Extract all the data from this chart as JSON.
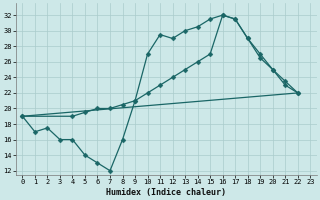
{
  "xlabel": "Humidex (Indice chaleur)",
  "bg_color": "#cde8e8",
  "grid_color": "#aacccc",
  "line_color": "#1a6666",
  "xlim": [
    -0.5,
    23.5
  ],
  "ylim": [
    11.5,
    33.5
  ],
  "xticks": [
    0,
    1,
    2,
    3,
    4,
    5,
    6,
    7,
    8,
    9,
    10,
    11,
    12,
    13,
    14,
    15,
    16,
    17,
    18,
    19,
    20,
    21,
    22,
    23
  ],
  "yticks": [
    12,
    14,
    16,
    18,
    20,
    22,
    24,
    26,
    28,
    30,
    32
  ],
  "line1_x": [
    0,
    1,
    2,
    3,
    4,
    5,
    6,
    7,
    8,
    9,
    10,
    11,
    12,
    13,
    14,
    15,
    16,
    17,
    18,
    19,
    20,
    21,
    22
  ],
  "line1_y": [
    19,
    17,
    17.5,
    16,
    16,
    14,
    13,
    12,
    16,
    21,
    27,
    29.5,
    29,
    30,
    30.5,
    31.5,
    32,
    31.5,
    29,
    26.5,
    25,
    23,
    22
  ],
  "line2_x": [
    0,
    4,
    5,
    6,
    7,
    8,
    9,
    10,
    11,
    12,
    13,
    14,
    15,
    16,
    17,
    18,
    19,
    20,
    21,
    22
  ],
  "line2_y": [
    19,
    19,
    19.5,
    20,
    20,
    20.5,
    21,
    22,
    23,
    24,
    25,
    26,
    27,
    32,
    31.5,
    29,
    27,
    25,
    23.5,
    22
  ],
  "line3_x": [
    0,
    22
  ],
  "line3_y": [
    19,
    22
  ],
  "marker_size": 2.5,
  "line_width": 0.9,
  "tick_fontsize": 5.0,
  "xlabel_fontsize": 6.0
}
